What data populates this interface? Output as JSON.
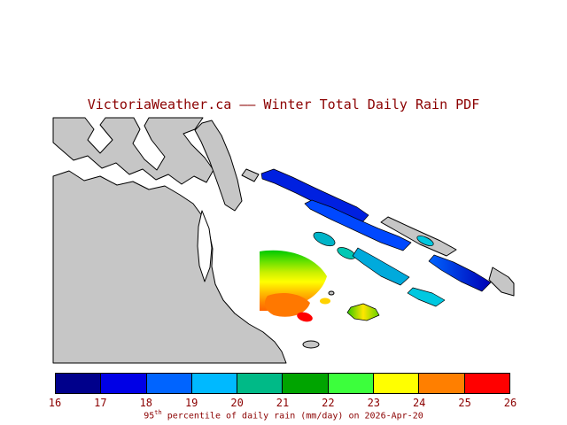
{
  "header": {
    "title": "VictoriaWeather.ca –– Winter Total Daily Rain PDF"
  },
  "map": {
    "land_color": "#c6c6c6",
    "water_color": "#ffffff"
  },
  "colorbar": {
    "min": 16,
    "max": 26,
    "ticks": [
      "16",
      "17",
      "18",
      "19",
      "20",
      "21",
      "22",
      "23",
      "24",
      "25",
      "26"
    ],
    "segment_colors": [
      "#00008b",
      "#0000e6",
      "#0064ff",
      "#00b9ff",
      "#00ba87",
      "#00a400",
      "#3cff3c",
      "#ffff00",
      "#ff7f00",
      "#ff0000"
    ]
  },
  "caption": {
    "value": "95",
    "superscript": "th",
    "text": " percentile of daily rain (mm/day) on 2026-Apr-20"
  },
  "colors": {
    "label_text": "#8b0000",
    "land": "#c6c6c6"
  }
}
